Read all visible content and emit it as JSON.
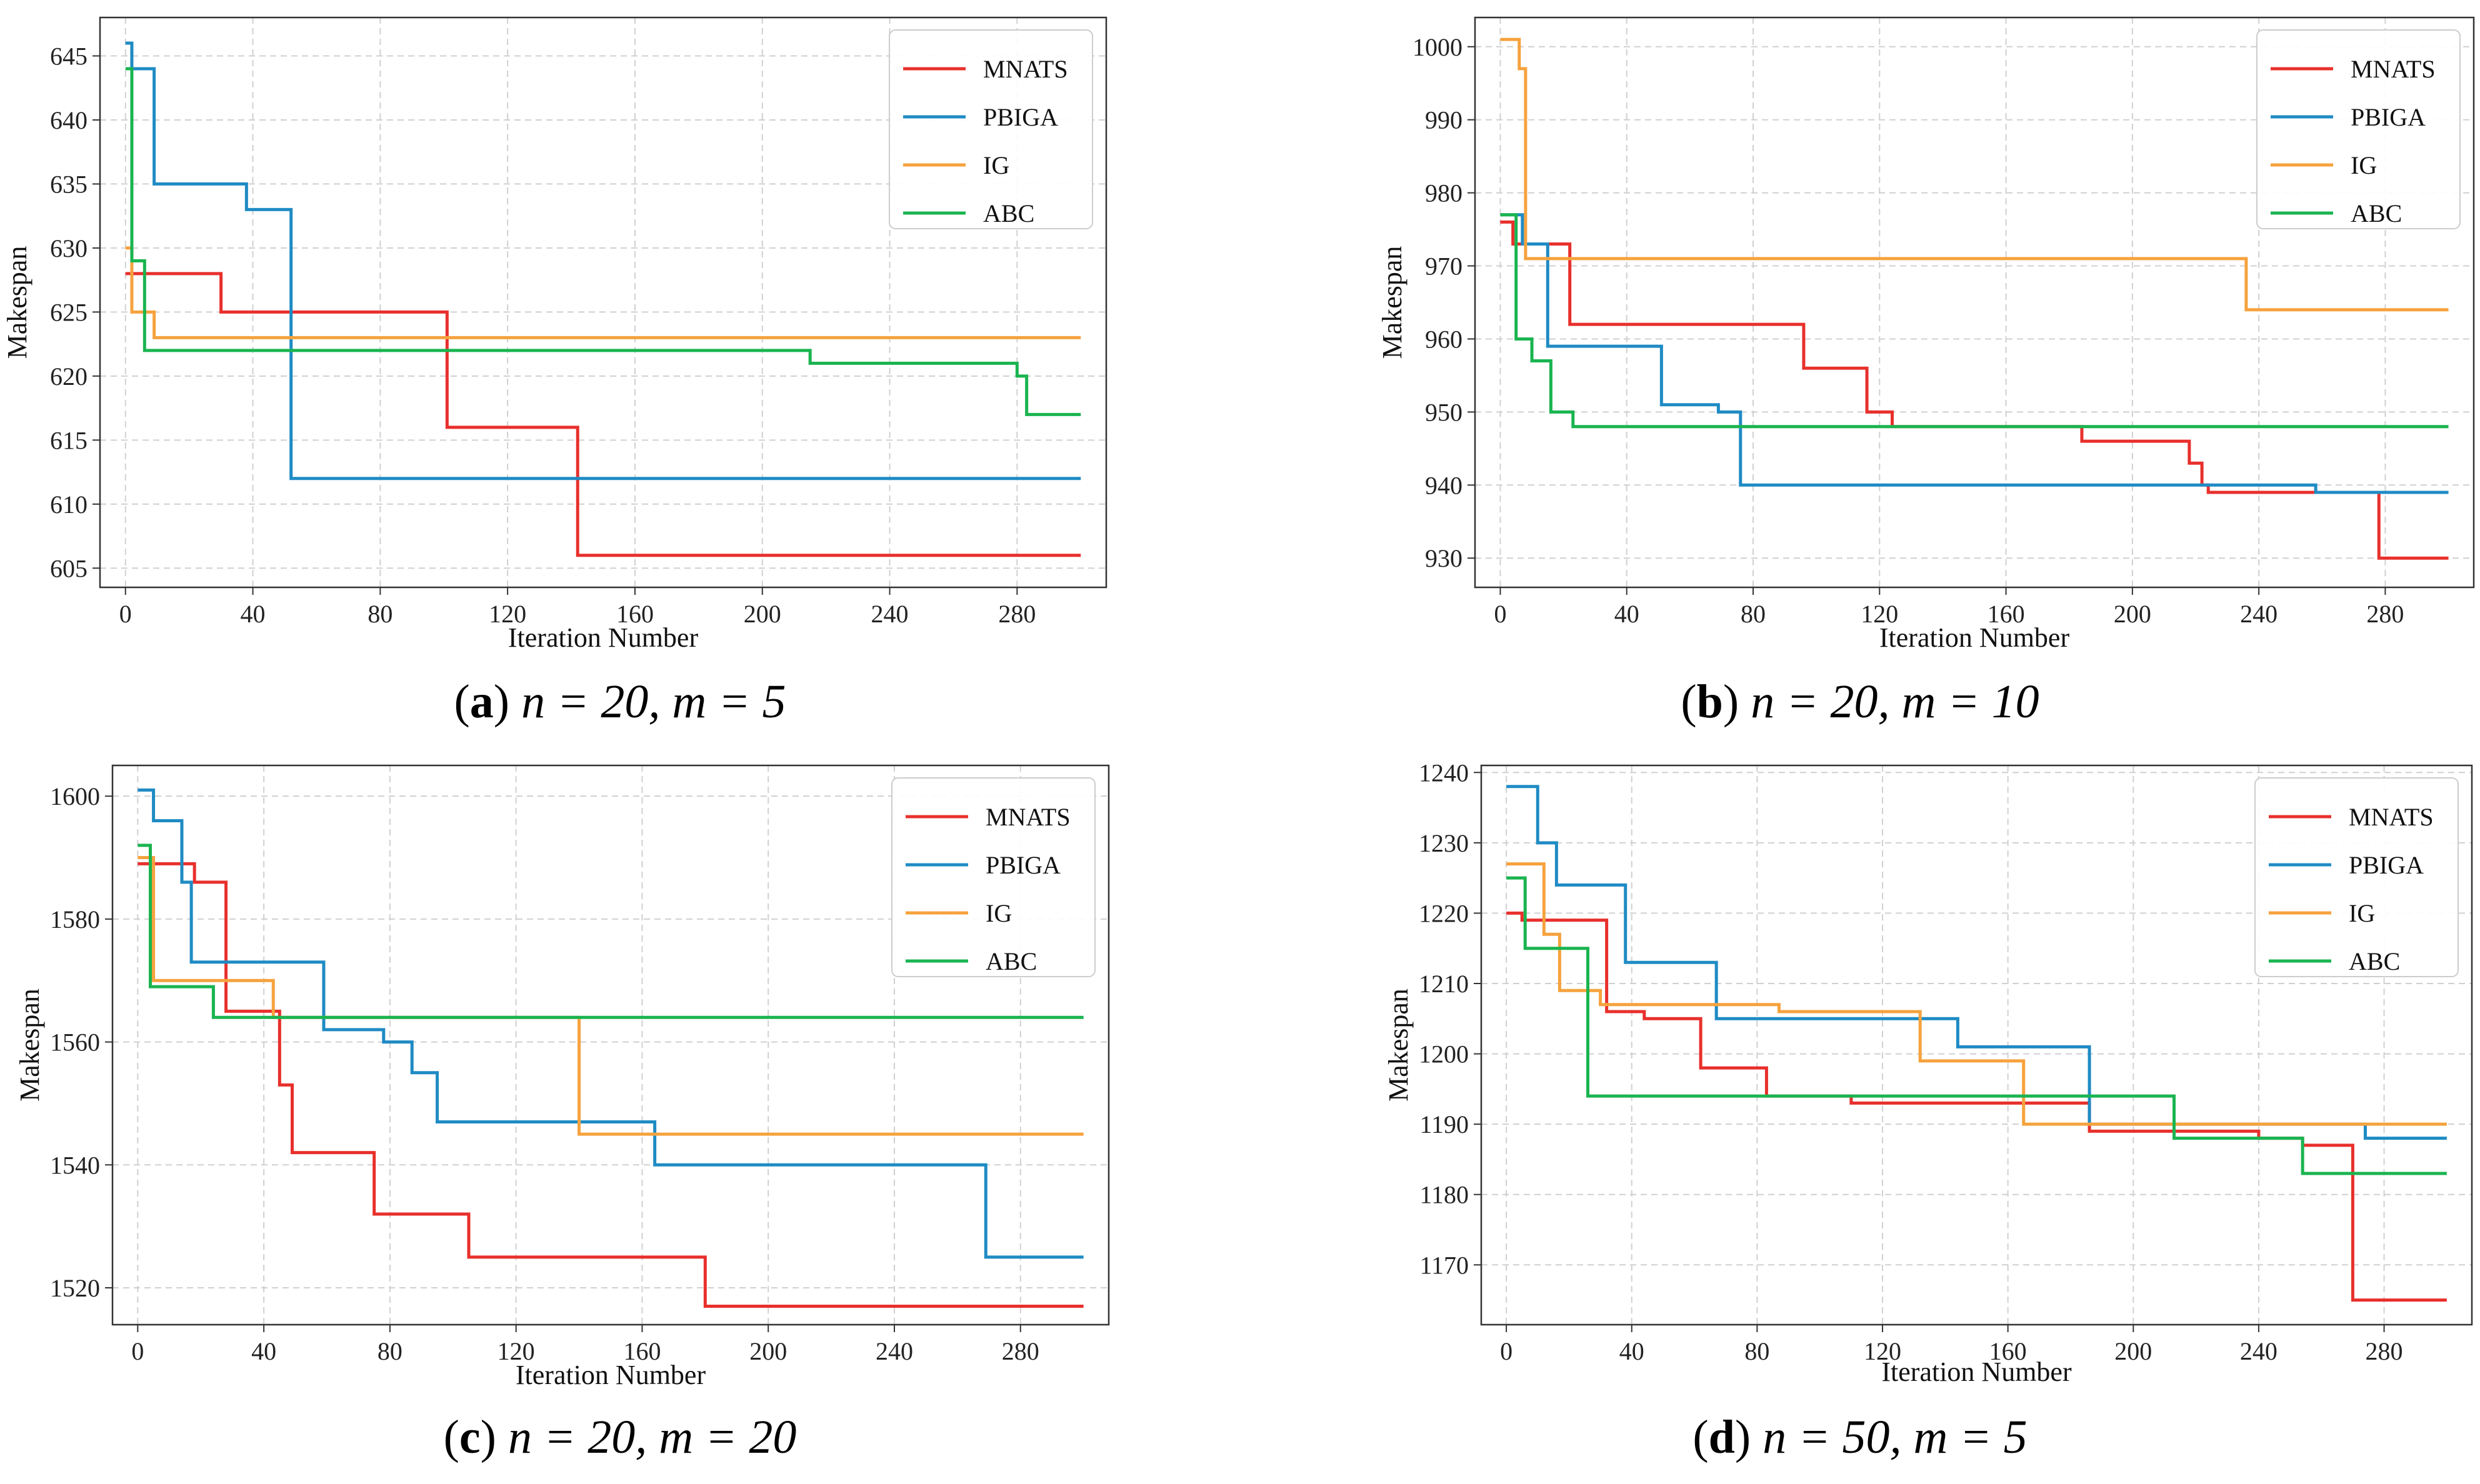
{
  "chart_data": [
    {
      "type": "line",
      "caption": {
        "letter": "a",
        "text": "n = 20, m = 5"
      },
      "xlabel": "Iteration Number",
      "ylabel": "Makespan",
      "xlim": [
        -8,
        308
      ],
      "ylim": [
        603.5,
        648
      ],
      "xticks": [
        0,
        40,
        80,
        120,
        160,
        200,
        240,
        280
      ],
      "yticks": [
        605,
        610,
        615,
        620,
        625,
        630,
        635,
        640,
        645
      ],
      "grid": true,
      "legend": "top-right",
      "series": [
        {
          "name": "MNATS",
          "color": "#e8302c",
          "steps": [
            [
              0,
              628
            ],
            [
              30,
              625
            ],
            [
              101,
              616
            ],
            [
              142,
              606
            ],
            [
              300,
              606
            ]
          ]
        },
        {
          "name": "PBIGA",
          "color": "#1f8bc4",
          "steps": [
            [
              0,
              646
            ],
            [
              2,
              644
            ],
            [
              9,
              635
            ],
            [
              38,
              633
            ],
            [
              52,
              612
            ],
            [
              300,
              612
            ]
          ]
        },
        {
          "name": "IG",
          "color": "#f6a23d",
          "steps": [
            [
              0,
              630
            ],
            [
              2,
              625
            ],
            [
              9,
              623
            ],
            [
              300,
              623
            ]
          ]
        },
        {
          "name": "ABC",
          "color": "#1ab450",
          "steps": [
            [
              0,
              644
            ],
            [
              2,
              629
            ],
            [
              6,
              622
            ],
            [
              215,
              621
            ],
            [
              280,
              620
            ],
            [
              283,
              617
            ],
            [
              300,
              617
            ]
          ]
        }
      ]
    },
    {
      "type": "line",
      "caption": {
        "letter": "b",
        "text": "n = 20, m = 10"
      },
      "xlabel": "Iteration Number",
      "ylabel": "Makespan",
      "xlim": [
        -8,
        308
      ],
      "ylim": [
        926,
        1004
      ],
      "xticks": [
        0,
        40,
        80,
        120,
        160,
        200,
        240,
        280
      ],
      "yticks": [
        930,
        940,
        950,
        960,
        970,
        980,
        990,
        1000
      ],
      "grid": true,
      "legend": "top-right",
      "series": [
        {
          "name": "MNATS",
          "color": "#e8302c",
          "steps": [
            [
              0,
              976
            ],
            [
              4,
              973
            ],
            [
              22,
              962
            ],
            [
              96,
              956
            ],
            [
              116,
              950
            ],
            [
              124,
              948
            ],
            [
              184,
              946
            ],
            [
              218,
              943
            ],
            [
              222,
              940
            ],
            [
              224,
              939
            ],
            [
              278,
              930
            ],
            [
              300,
              930
            ]
          ]
        },
        {
          "name": "PBIGA",
          "color": "#1f8bc4",
          "steps": [
            [
              0,
              977
            ],
            [
              7,
              973
            ],
            [
              15,
              959
            ],
            [
              51,
              951
            ],
            [
              69,
              950
            ],
            [
              76,
              940
            ],
            [
              258,
              939
            ],
            [
              300,
              939
            ]
          ]
        },
        {
          "name": "IG",
          "color": "#f6a23d",
          "steps": [
            [
              0,
              1001
            ],
            [
              6,
              997
            ],
            [
              8,
              971
            ],
            [
              236,
              964
            ],
            [
              300,
              964
            ]
          ]
        },
        {
          "name": "ABC",
          "color": "#1ab450",
          "steps": [
            [
              0,
              977
            ],
            [
              5,
              960
            ],
            [
              10,
              957
            ],
            [
              16,
              950
            ],
            [
              23,
              948
            ],
            [
              300,
              948
            ]
          ]
        }
      ]
    },
    {
      "type": "line",
      "caption": {
        "letter": "c",
        "text": "n = 20, m = 20"
      },
      "xlabel": "Iteration Number",
      "ylabel": "Makespan",
      "xlim": [
        -8,
        308
      ],
      "ylim": [
        1514,
        1605
      ],
      "xticks": [
        0,
        40,
        80,
        120,
        160,
        200,
        240,
        280
      ],
      "yticks": [
        1520,
        1540,
        1560,
        1580,
        1600
      ],
      "grid": true,
      "legend": "top-right",
      "series": [
        {
          "name": "MNATS",
          "color": "#e8302c",
          "steps": [
            [
              0,
              1589
            ],
            [
              18,
              1586
            ],
            [
              28,
              1565
            ],
            [
              45,
              1553
            ],
            [
              49,
              1542
            ],
            [
              75,
              1532
            ],
            [
              105,
              1525
            ],
            [
              180,
              1517
            ],
            [
              300,
              1517
            ]
          ]
        },
        {
          "name": "PBIGA",
          "color": "#1f8bc4",
          "steps": [
            [
              0,
              1601
            ],
            [
              5,
              1596
            ],
            [
              14,
              1586
            ],
            [
              17,
              1573
            ],
            [
              59,
              1562
            ],
            [
              78,
              1560
            ],
            [
              87,
              1555
            ],
            [
              95,
              1547
            ],
            [
              164,
              1540
            ],
            [
              269,
              1525
            ],
            [
              300,
              1525
            ]
          ]
        },
        {
          "name": "IG",
          "color": "#f6a23d",
          "steps": [
            [
              0,
              1590
            ],
            [
              5,
              1570
            ],
            [
              43,
              1564
            ],
            [
              140,
              1545
            ],
            [
              300,
              1545
            ]
          ]
        },
        {
          "name": "ABC",
          "color": "#1ab450",
          "steps": [
            [
              0,
              1592
            ],
            [
              4,
              1569
            ],
            [
              24,
              1564
            ],
            [
              300,
              1564
            ]
          ]
        }
      ]
    },
    {
      "type": "line",
      "caption": {
        "letter": "d",
        "text": "n = 50, m = 5"
      },
      "xlabel": "Iteration Number",
      "ylabel": "Makespan",
      "xlim": [
        -8,
        308
      ],
      "ylim": [
        1161.5,
        1241
      ],
      "xticks": [
        0,
        40,
        80,
        120,
        160,
        200,
        240,
        280
      ],
      "yticks": [
        1170,
        1180,
        1190,
        1200,
        1210,
        1220,
        1230,
        1240
      ],
      "grid": true,
      "legend": "top-right",
      "series": [
        {
          "name": "MNATS",
          "color": "#e8302c",
          "steps": [
            [
              0,
              1220
            ],
            [
              5,
              1219
            ],
            [
              32,
              1206
            ],
            [
              44,
              1205
            ],
            [
              62,
              1198
            ],
            [
              83,
              1194
            ],
            [
              110,
              1193
            ],
            [
              186,
              1189
            ],
            [
              240,
              1188
            ],
            [
              254,
              1187
            ],
            [
              270,
              1165
            ],
            [
              300,
              1165
            ]
          ]
        },
        {
          "name": "PBIGA",
          "color": "#1f8bc4",
          "steps": [
            [
              0,
              1238
            ],
            [
              10,
              1230
            ],
            [
              16,
              1224
            ],
            [
              38,
              1213
            ],
            [
              67,
              1205
            ],
            [
              144,
              1201
            ],
            [
              186,
              1190
            ],
            [
              274,
              1188
            ],
            [
              300,
              1188
            ]
          ]
        },
        {
          "name": "IG",
          "color": "#f6a23d",
          "steps": [
            [
              0,
              1227
            ],
            [
              12,
              1217
            ],
            [
              17,
              1209
            ],
            [
              30,
              1207
            ],
            [
              87,
              1206
            ],
            [
              132,
              1199
            ],
            [
              165,
              1190
            ],
            [
              300,
              1190
            ]
          ]
        },
        {
          "name": "ABC",
          "color": "#1ab450",
          "steps": [
            [
              0,
              1225
            ],
            [
              6,
              1215
            ],
            [
              26,
              1194
            ],
            [
              213,
              1188
            ],
            [
              254,
              1183
            ],
            [
              300,
              1183
            ]
          ]
        }
      ]
    }
  ]
}
